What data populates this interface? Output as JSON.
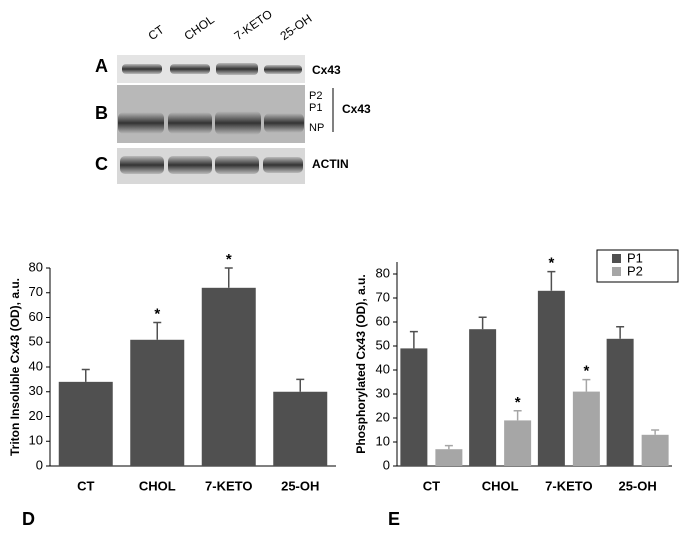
{
  "blot": {
    "lanes": [
      "CT",
      "CHOL",
      "7-KETO",
      "25-OH"
    ],
    "rows": [
      {
        "panel": "A",
        "label": "Cx43"
      },
      {
        "panel": "B",
        "label": "Cx43",
        "bands": [
          "P2",
          "P1",
          "NP"
        ]
      },
      {
        "panel": "C",
        "label": "ACTIN"
      }
    ]
  },
  "chart_data": [
    {
      "type": "bar",
      "panel": "D",
      "y_label": "Triton Insoluble Cx43 (OD), a.u.",
      "categories": [
        "CT",
        "CHOL",
        "7-KETO",
        "25-OH"
      ],
      "values": [
        34,
        51,
        72,
        30
      ],
      "errors": [
        5,
        7,
        8,
        5
      ],
      "significance": [
        null,
        "*",
        "*",
        null
      ],
      "color": "#505050",
      "ylim": [
        0,
        80
      ],
      "yticks": [
        0,
        10,
        20,
        30,
        40,
        50,
        60,
        70,
        80
      ]
    },
    {
      "type": "bar",
      "panel": "E",
      "y_label": "Phosphorylated Cx43 (OD), a.u.",
      "categories": [
        "CT",
        "CHOL",
        "7-KETO",
        "25-OH"
      ],
      "series": [
        {
          "name": "P1",
          "color": "#505050",
          "values": [
            49,
            57,
            73,
            53
          ],
          "errors": [
            7,
            5,
            8,
            5
          ],
          "significance": [
            null,
            null,
            "*",
            null
          ]
        },
        {
          "name": "P2",
          "color": "#a6a6a6",
          "values": [
            7,
            19,
            31,
            13
          ],
          "errors": [
            1.5,
            4,
            5,
            2
          ],
          "significance": [
            null,
            "*",
            "*",
            null
          ]
        }
      ],
      "ylim": [
        0,
        85
      ],
      "yticks": [
        0,
        10,
        20,
        30,
        40,
        50,
        60,
        70,
        80
      ],
      "legend": "top-right"
    }
  ]
}
